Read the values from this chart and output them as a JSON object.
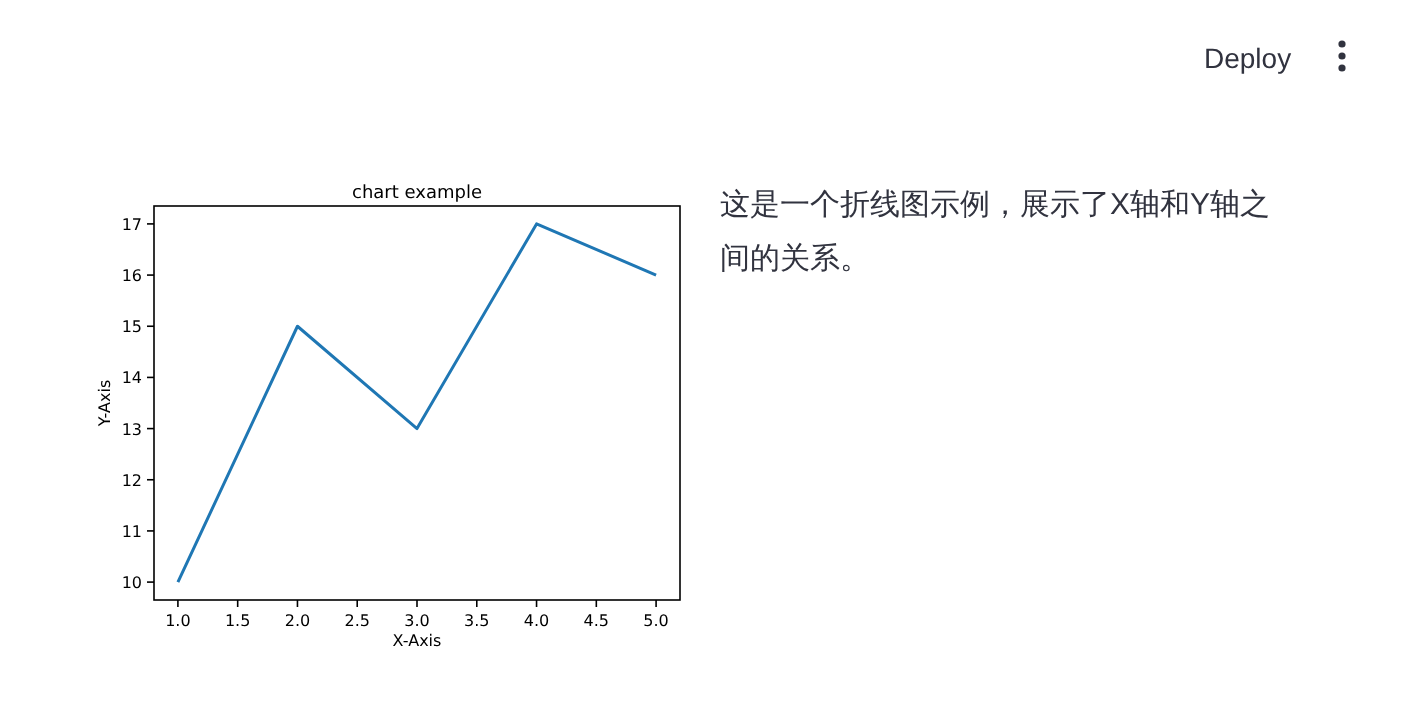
{
  "chart_data": [
    {
      "type": "line",
      "title": "chart example",
      "xlabel": "X-Axis",
      "ylabel": "Y-Axis",
      "x": [
        1,
        2,
        3,
        4,
        5
      ],
      "series": [
        {
          "color": "#1f77b4",
          "values": [
            10,
            15,
            13,
            17,
            16
          ]
        }
      ],
      "xlim": [
        0.8,
        5.2
      ],
      "ylim": [
        9.65,
        17.35
      ],
      "xticks": [
        {
          "value": 1,
          "label": "1.0"
        },
        {
          "value": 1.5,
          "label": "1.5"
        },
        {
          "value": 2,
          "label": "2.0"
        },
        {
          "value": 2.5,
          "label": "2.5"
        },
        {
          "value": 3,
          "label": "3.0"
        },
        {
          "value": 3.5,
          "label": "3.5"
        },
        {
          "value": 4,
          "label": "4.0"
        },
        {
          "value": 4.5,
          "label": "4.5"
        },
        {
          "value": 5,
          "label": "5.0"
        }
      ],
      "yticks": [
        10,
        11,
        12,
        13,
        14,
        15,
        16,
        17
      ]
    },
    {
      "type": "other",
      "annotations": [
        "这是一个折线图示例，展示了X轴和Y轴之间的关系。",
        "Deploy"
      ]
    }
  ]
}
